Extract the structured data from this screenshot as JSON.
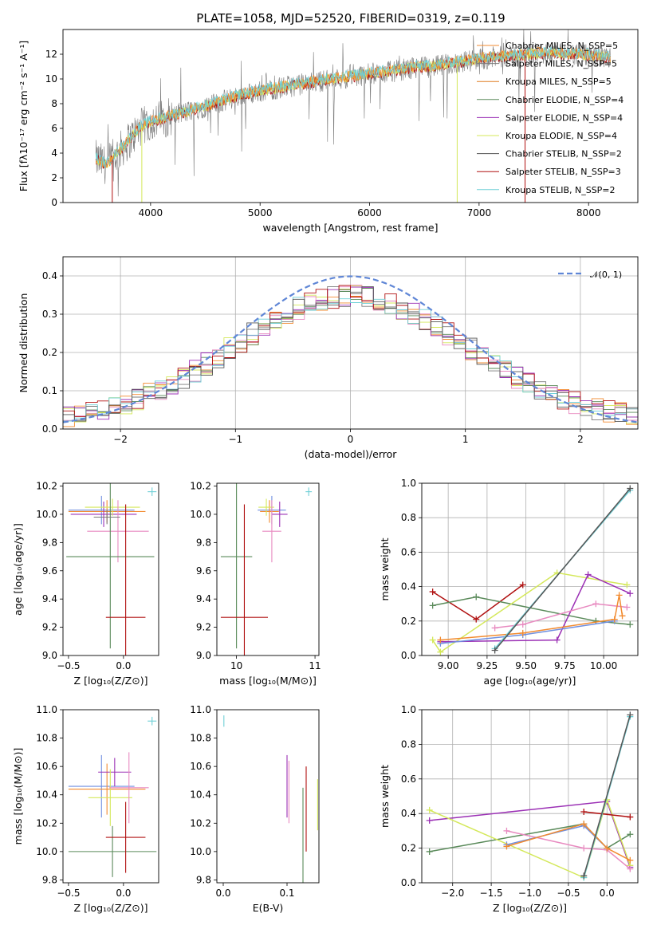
{
  "colors": {
    "chabrier_miles": "#f28b30",
    "salpeter_miles": "#7b7b7b",
    "kroupa_miles": "#e07b20",
    "chabrier_elodie": "#5a8a5a",
    "salpeter_elodie": "#9b30b5",
    "kroupa_elodie": "#d4e85a",
    "chabrier_stelib": "#555555",
    "salpeter_stelib": "#b01010",
    "kroupa_stelib": "#6ecfd6",
    "blue": "#6f8fe0",
    "pink": "#e88ac0",
    "gauss": "#5f86d6"
  },
  "chart_data": [
    {
      "id": "spectrum",
      "type": "line",
      "title": "PLATE=1058, MJD=52520, FIBERID=0319, z=0.119",
      "xlabel": "wavelength [Angstrom, rest frame]",
      "ylabel": "Flux [fλ10⁻¹⁷ erg cm⁻² s⁻¹ A⁻¹]",
      "xlim": [
        3200,
        8450
      ],
      "ylim": [
        0,
        14
      ],
      "xticks": [
        "4000",
        "5000",
        "6000",
        "7000",
        "8000"
      ],
      "yticks": [
        "0",
        "2",
        "4",
        "6",
        "8",
        "10",
        "12"
      ],
      "grid": false,
      "legend_position": "top-right",
      "legend": [
        "Chabrier MILES, N_SSP=5",
        "Salpeter MILES, N_SSP=5",
        "Kroupa MILES, N_SSP=5",
        "Chabrier ELODIE, N_SSP=4",
        "Salpeter ELODIE, N_SSP=4",
        "Kroupa ELODIE, N_SSP=4",
        "Chabrier STELIB, N_SSP=2",
        "Salpeter STELIB, N_SSP=3",
        "Kroupa STELIB, N_SSP=2"
      ],
      "continuum": [
        [
          3500,
          3.5
        ],
        [
          3600,
          3.0
        ],
        [
          3700,
          4.0
        ],
        [
          3800,
          5.0
        ],
        [
          3900,
          6.0
        ],
        [
          4000,
          6.5
        ],
        [
          4200,
          7.0
        ],
        [
          4400,
          7.5
        ],
        [
          4600,
          8.0
        ],
        [
          4800,
          8.6
        ],
        [
          5000,
          9.0
        ],
        [
          5200,
          9.3
        ],
        [
          5400,
          9.6
        ],
        [
          5600,
          9.9
        ],
        [
          5800,
          10.1
        ],
        [
          6000,
          10.4
        ],
        [
          6200,
          10.6
        ],
        [
          6400,
          10.9
        ],
        [
          6600,
          11.0
        ],
        [
          6800,
          11.3
        ],
        [
          7000,
          11.6
        ],
        [
          7200,
          11.8
        ],
        [
          7400,
          11.9
        ],
        [
          7600,
          12.1
        ],
        [
          7800,
          12.0
        ],
        [
          8000,
          11.9
        ],
        [
          8200,
          11.7
        ]
      ]
    },
    {
      "id": "residuals",
      "type": "histogram",
      "xlabel": "(data-model)/error",
      "ylabel": "Normed distribution",
      "xlim": [
        -2.5,
        2.5
      ],
      "ylim": [
        0,
        0.45
      ],
      "xticks": [
        "−2",
        "−1",
        "0",
        "1",
        "2"
      ],
      "yticks": [
        "0.0",
        "0.1",
        "0.2",
        "0.3",
        "0.4"
      ],
      "grid": true,
      "legend_position": "top-right",
      "legend": [
        "𝒩(0, 1)"
      ],
      "gaussian": {
        "mean": 0,
        "sigma": 1
      }
    },
    {
      "id": "age_vs_Z",
      "type": "errorbar",
      "xlabel": "Z [log₁₀(Z/Z⊙)]",
      "ylabel": "age  [log₁₀(age/yr)]",
      "xlim": [
        -0.55,
        0.32
      ],
      "ylim": [
        9.0,
        10.22
      ],
      "xticks": [
        "−0.5",
        "0.0"
      ],
      "yticks": [
        "9.0",
        "9.2",
        "9.4",
        "9.6",
        "9.8",
        "10.0",
        "10.2"
      ],
      "points": [
        {
          "x": -0.2,
          "y": 10.03,
          "xerr": 0.3,
          "yerr": 0.1,
          "color": "blue"
        },
        {
          "x": -0.15,
          "y": 10.02,
          "xerr": 0.35,
          "yerr": 0.08,
          "color": "chabrier_miles"
        },
        {
          "x": -0.18,
          "y": 10.0,
          "xerr": 0.3,
          "yerr": 0.09,
          "color": "salpeter_elodie"
        },
        {
          "x": -0.1,
          "y": 10.05,
          "xerr": 0.25,
          "yerr": 0.06,
          "color": "kroupa_elodie"
        },
        {
          "x": -0.05,
          "y": 9.88,
          "xerr": 0.28,
          "yerr": 0.22,
          "color": "pink"
        },
        {
          "x": -0.12,
          "y": 9.7,
          "xerr": 0.4,
          "yerr": 0.65,
          "color": "chabrier_elodie"
        },
        {
          "x": 0.02,
          "y": 9.27,
          "xerr": 0.18,
          "yerr": 0.8,
          "color": "salpeter_stelib"
        },
        {
          "x": -0.15,
          "y": 9.98,
          "xerr": 0.12,
          "yerr": 0.05,
          "color": "salpeter_miles"
        },
        {
          "x": 0.26,
          "y": 10.16,
          "xerr": 0.04,
          "yerr": 0.03,
          "color": "kroupa_stelib"
        }
      ]
    },
    {
      "id": "age_vs_mass",
      "type": "errorbar",
      "xlabel": "mass [log₁₀(M/M⊙)]",
      "ylabel": "",
      "xlim": [
        9.75,
        11.05
      ],
      "ylim": [
        9.0,
        10.22
      ],
      "xticks": [
        "10",
        "11"
      ],
      "yticks": [
        "9.0",
        "9.2",
        "9.4",
        "9.6",
        "9.8",
        "10.0",
        "10.2"
      ],
      "points": [
        {
          "x": 10.45,
          "y": 10.03,
          "xerr": 0.18,
          "yerr": 0.1,
          "color": "blue"
        },
        {
          "x": 10.42,
          "y": 10.02,
          "xerr": 0.12,
          "yerr": 0.08,
          "color": "chabrier_miles"
        },
        {
          "x": 10.55,
          "y": 10.0,
          "xerr": 0.1,
          "yerr": 0.09,
          "color": "salpeter_elodie"
        },
        {
          "x": 10.38,
          "y": 10.05,
          "xerr": 0.1,
          "yerr": 0.06,
          "color": "kroupa_elodie"
        },
        {
          "x": 10.45,
          "y": 9.88,
          "xerr": 0.12,
          "yerr": 0.22,
          "color": "pink"
        },
        {
          "x": 10.0,
          "y": 9.7,
          "xerr": 0.2,
          "yerr": 0.65,
          "color": "chabrier_elodie"
        },
        {
          "x": 10.1,
          "y": 9.27,
          "xerr": 0.3,
          "yerr": 0.8,
          "color": "salpeter_stelib"
        },
        {
          "x": 10.92,
          "y": 10.16,
          "xerr": 0.04,
          "yerr": 0.03,
          "color": "kroupa_stelib"
        }
      ]
    },
    {
      "id": "massweight_vs_age",
      "type": "line",
      "xlabel": "age  [log₁₀(age/yr)]",
      "ylabel": "mass weight",
      "xlim": [
        8.83,
        10.22
      ],
      "ylim": [
        0,
        1
      ],
      "xticks": [
        "9.00",
        "9.25",
        "9.50",
        "9.75",
        "10.00"
      ],
      "yticks": [
        "0.0",
        "0.2",
        "0.4",
        "0.6",
        "0.8",
        "1.0"
      ],
      "grid": true,
      "series": [
        {
          "color": "salpeter_stelib",
          "x": [
            8.9,
            9.18,
            9.48
          ],
          "y": [
            0.37,
            0.21,
            0.41
          ]
        },
        {
          "color": "chabrier_elodie",
          "x": [
            8.9,
            9.18,
            9.95,
            10.17
          ],
          "y": [
            0.29,
            0.34,
            0.2,
            0.18
          ]
        },
        {
          "color": "kroupa_elodie",
          "x": [
            8.9,
            8.95,
            9.7,
            10.15
          ],
          "y": [
            0.09,
            0.02,
            0.48,
            0.41
          ]
        },
        {
          "color": "salpeter_elodie",
          "x": [
            8.95,
            9.7,
            9.9,
            10.17
          ],
          "y": [
            0.08,
            0.09,
            0.47,
            0.36
          ]
        },
        {
          "color": "pink",
          "x": [
            9.3,
            9.48,
            9.95,
            10.15
          ],
          "y": [
            0.16,
            0.18,
            0.3,
            0.28
          ]
        },
        {
          "color": "blue",
          "x": [
            8.95,
            9.48,
            10.07
          ],
          "y": [
            0.07,
            0.12,
            0.2
          ]
        },
        {
          "color": "chabrier_miles",
          "x": [
            8.95,
            9.48,
            10.07,
            10.1,
            10.12
          ],
          "y": [
            0.09,
            0.13,
            0.21,
            0.35,
            0.23
          ]
        },
        {
          "color": "kroupa_stelib",
          "x": [
            9.3,
            10.17
          ],
          "y": [
            0.04,
            0.96
          ]
        },
        {
          "color": "chabrier_stelib",
          "x": [
            9.3,
            10.17
          ],
          "y": [
            0.03,
            0.97
          ]
        }
      ]
    },
    {
      "id": "mass_vs_Z",
      "type": "errorbar",
      "xlabel": "Z [log₁₀(Z/Z⊙)]",
      "ylabel": "mass [log₁₀(M/M⊙)]",
      "xlim": [
        -0.55,
        0.32
      ],
      "ylim": [
        9.78,
        11.0
      ],
      "xticks": [
        "−0.5",
        "0.0"
      ],
      "yticks": [
        "9.8",
        "10.0",
        "10.2",
        "10.4",
        "10.6",
        "10.8",
        "11.0"
      ],
      "points": [
        {
          "x": -0.2,
          "y": 10.46,
          "xerr": 0.3,
          "yerr": 0.22,
          "color": "blue"
        },
        {
          "x": -0.15,
          "y": 10.44,
          "xerr": 0.35,
          "yerr": 0.18,
          "color": "chabrier_miles"
        },
        {
          "x": -0.08,
          "y": 10.56,
          "xerr": 0.15,
          "yerr": 0.1,
          "color": "salpeter_elodie"
        },
        {
          "x": -0.12,
          "y": 10.38,
          "xerr": 0.2,
          "yerr": 0.2,
          "color": "kroupa_elodie"
        },
        {
          "x": 0.05,
          "y": 10.45,
          "xerr": 0.18,
          "yerr": 0.25,
          "color": "pink"
        },
        {
          "x": -0.1,
          "y": 10.0,
          "xerr": 0.4,
          "yerr": 0.18,
          "color": "chabrier_elodie"
        },
        {
          "x": 0.02,
          "y": 10.1,
          "xerr": 0.18,
          "yerr": 0.25,
          "color": "salpeter_stelib"
        },
        {
          "x": 0.26,
          "y": 10.92,
          "xerr": 0.04,
          "yerr": 0.03,
          "color": "kroupa_stelib"
        }
      ]
    },
    {
      "id": "mass_vs_ebv",
      "type": "errorbar",
      "xlabel": "E(B-V)",
      "ylabel": "",
      "xlim": [
        -0.01,
        0.15
      ],
      "ylim": [
        9.78,
        11.0
      ],
      "xticks": [
        "0.0",
        "0.1"
      ],
      "yticks": [
        "9.8",
        "10.0",
        "10.2",
        "10.4",
        "10.6",
        "10.8",
        "11.0"
      ],
      "points": [
        {
          "x": 0.1,
          "y": 10.46,
          "xerr": 0,
          "yerr": 0.22,
          "color": "salpeter_elodie"
        },
        {
          "x": 0.103,
          "y": 10.42,
          "xerr": 0,
          "yerr": 0.22,
          "color": "pink"
        },
        {
          "x": 0.125,
          "y": 10.1,
          "xerr": 0,
          "yerr": 0.35,
          "color": "chabrier_elodie"
        },
        {
          "x": 0.13,
          "y": 10.3,
          "xerr": 0,
          "yerr": 0.3,
          "color": "salpeter_stelib"
        },
        {
          "x": 0.148,
          "y": 10.33,
          "xerr": 0,
          "yerr": 0.18,
          "color": "kroupa_elodie"
        },
        {
          "x": 0.001,
          "y": 10.92,
          "xerr": 0,
          "yerr": 0.04,
          "color": "kroupa_stelib"
        }
      ]
    },
    {
      "id": "massweight_vs_Z",
      "type": "line",
      "xlabel": "Z [log₁₀(Z/Z⊙)]",
      "ylabel": "mass weight",
      "xlim": [
        -2.4,
        0.4
      ],
      "ylim": [
        0,
        1
      ],
      "xticks": [
        "−2.0",
        "−1.5",
        "−1.0",
        "−0.5",
        "0.0"
      ],
      "yticks": [
        "0.0",
        "0.2",
        "0.4",
        "0.6",
        "0.8",
        "1.0"
      ],
      "grid": true,
      "series": [
        {
          "color": "salpeter_elodie",
          "x": [
            -2.3,
            0.0,
            0.3
          ],
          "y": [
            0.36,
            0.47,
            0.09
          ]
        },
        {
          "color": "chabrier_elodie",
          "x": [
            -2.3,
            -0.3,
            0.0,
            0.3
          ],
          "y": [
            0.18,
            0.34,
            0.2,
            0.28
          ]
        },
        {
          "color": "kroupa_elodie",
          "x": [
            -2.3,
            -0.3,
            0.0,
            0.3
          ],
          "y": [
            0.42,
            0.03,
            0.48,
            0.1
          ]
        },
        {
          "color": "salpeter_stelib",
          "x": [
            -0.3,
            0.3
          ],
          "y": [
            0.41,
            0.38
          ]
        },
        {
          "color": "pink",
          "x": [
            -1.3,
            -0.3,
            0.0,
            0.3
          ],
          "y": [
            0.3,
            0.2,
            0.19,
            0.08
          ]
        },
        {
          "color": "blue",
          "x": [
            -1.3,
            -0.3,
            0.0
          ],
          "y": [
            0.22,
            0.33,
            0.2
          ]
        },
        {
          "color": "chabrier_miles",
          "x": [
            -1.3,
            -0.3,
            0.0,
            0.3
          ],
          "y": [
            0.21,
            0.34,
            0.2,
            0.13
          ]
        },
        {
          "color": "kroupa_stelib",
          "x": [
            -0.3,
            0.3
          ],
          "y": [
            0.03,
            0.96
          ]
        },
        {
          "color": "chabrier_stelib",
          "x": [
            -0.3,
            0.3
          ],
          "y": [
            0.04,
            0.97
          ]
        }
      ]
    }
  ]
}
